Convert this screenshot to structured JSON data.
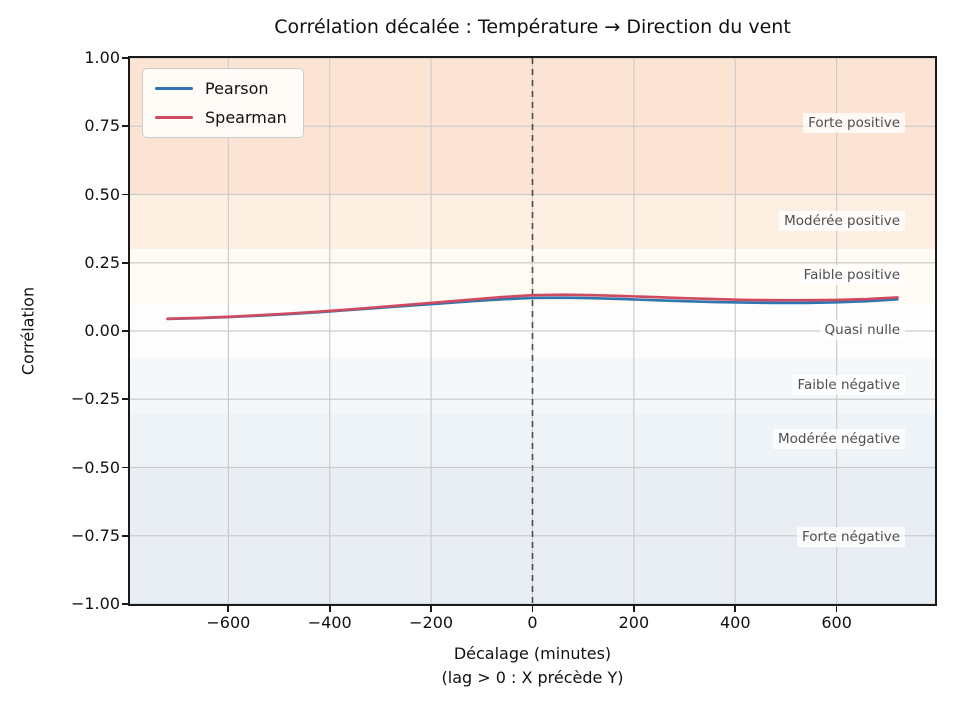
{
  "chart_data": {
    "type": "line",
    "title": "Corrélation décalée : Température → Direction du vent",
    "xlabel": "Décalage (minutes)",
    "xlabel_note": "(lag > 0 : X précède Y)",
    "ylabel": "Corrélation",
    "xlim": [
      -794,
      794
    ],
    "ylim": [
      -1.0,
      1.0
    ],
    "grid": true,
    "legend_position": "upper-left",
    "x_ticks": [
      -600,
      -400,
      -200,
      0,
      200,
      400,
      600
    ],
    "x_tick_labels": [
      "−600",
      "−400",
      "−200",
      "0",
      "200",
      "400",
      "600"
    ],
    "y_ticks": [
      1.0,
      0.75,
      0.5,
      0.25,
      0.0,
      -0.25,
      -0.5,
      -0.75,
      -1.0
    ],
    "y_tick_labels": [
      "1.00",
      "0.75",
      "0.50",
      "0.25",
      "0.00",
      "−0.25",
      "−0.50",
      "−0.75",
      "−1.00"
    ],
    "vline": {
      "x": 0,
      "style": "dashed",
      "color": "#4d4d4d"
    },
    "grid_color": "#cccccc",
    "bands": [
      {
        "label": "Forte positive",
        "from": 0.5,
        "to": 1.0,
        "color": "#fce4d4",
        "label_y": 0.76
      },
      {
        "label": "Modérée positive",
        "from": 0.3,
        "to": 0.5,
        "color": "#fdf0e3",
        "label_y": 0.4
      },
      {
        "label": "Faible positive",
        "from": 0.1,
        "to": 0.3,
        "color": "#fefaf4",
        "label_y": 0.2
      },
      {
        "label": "Quasi nulle",
        "from": -0.1,
        "to": 0.1,
        "color": "#fdfdfd",
        "label_y": 0.0
      },
      {
        "label": "Faible négative",
        "from": -0.3,
        "to": -0.1,
        "color": "#f4f8fb",
        "label_y": -0.2
      },
      {
        "label": "Modérée négative",
        "from": -0.5,
        "to": -0.3,
        "color": "#eef3f8",
        "label_y": -0.4
      },
      {
        "label": "Forte négative",
        "from": -1.0,
        "to": -0.5,
        "color": "#e8eef4",
        "label_y": -0.76
      }
    ],
    "x": [
      -720,
      -660,
      -600,
      -540,
      -480,
      -420,
      -360,
      -300,
      -240,
      -180,
      -120,
      -60,
      0,
      60,
      120,
      180,
      240,
      300,
      360,
      420,
      480,
      540,
      600,
      660,
      720
    ],
    "series": [
      {
        "name": "Pearson",
        "color": "#2e75b1",
        "values": [
          0.044,
          0.047,
          0.051,
          0.056,
          0.062,
          0.069,
          0.077,
          0.085,
          0.093,
          0.101,
          0.109,
          0.116,
          0.121,
          0.122,
          0.12,
          0.117,
          0.113,
          0.109,
          0.106,
          0.104,
          0.103,
          0.103,
          0.105,
          0.109,
          0.116
        ]
      },
      {
        "name": "Spearman",
        "color": "#d04a5f",
        "values": [
          0.045,
          0.048,
          0.052,
          0.058,
          0.064,
          0.071,
          0.079,
          0.088,
          0.097,
          0.106,
          0.115,
          0.124,
          0.131,
          0.133,
          0.131,
          0.128,
          0.124,
          0.12,
          0.117,
          0.114,
          0.113,
          0.113,
          0.114,
          0.117,
          0.123
        ]
      }
    ]
  }
}
